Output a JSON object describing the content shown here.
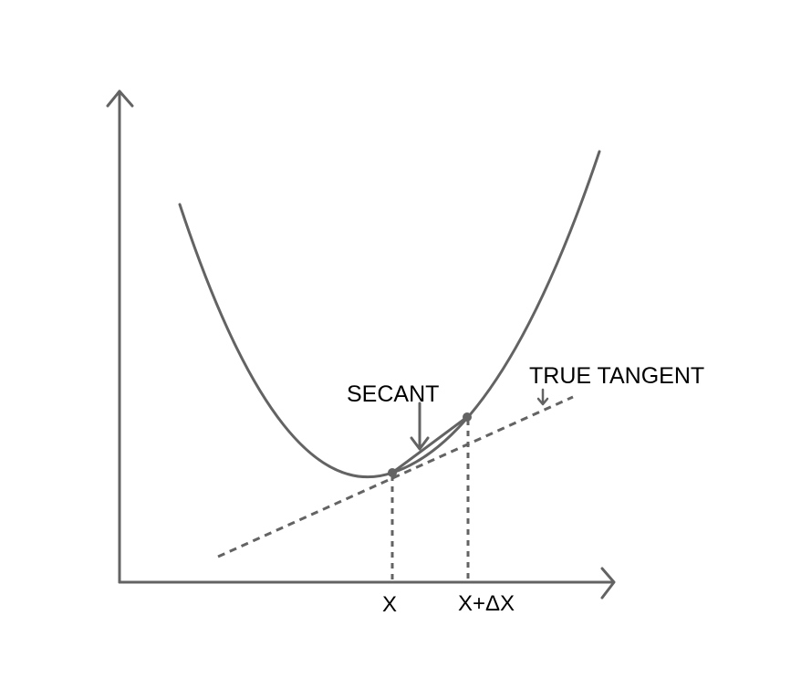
{
  "labels": {
    "secant": "SECANT",
    "true_tangent": "TRUE TANGENT",
    "x_point": "X",
    "x_plus_dx": "X+ΔX"
  },
  "colors": {
    "line": "#636363",
    "text": "#000000",
    "background": "#ffffff"
  }
}
